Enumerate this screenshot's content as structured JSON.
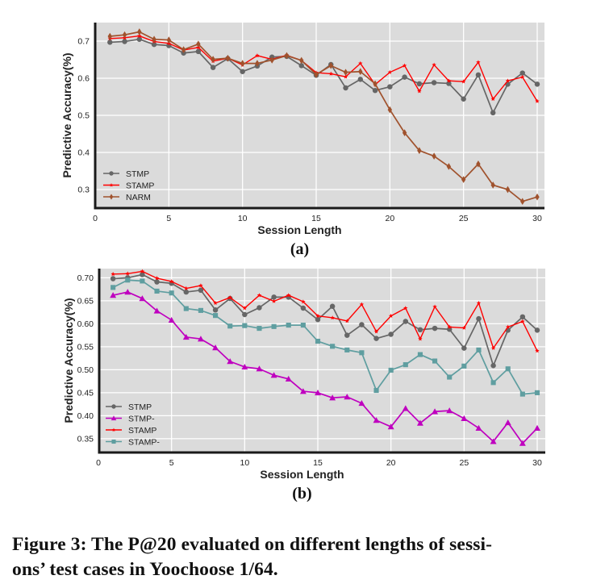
{
  "chart_data": [
    {
      "id": "a",
      "type": "line",
      "panel_label": "(a)",
      "title": "",
      "xlabel": "Session Length",
      "ylabel": "Predictive Accuracy(%)",
      "xlim": [
        0,
        30
      ],
      "ylim": [
        0.25,
        0.75
      ],
      "xticks": [
        0,
        5,
        10,
        15,
        20,
        25,
        30
      ],
      "yticks": [
        0.3,
        0.4,
        0.5,
        0.6,
        0.7
      ],
      "ytick_labels": [
        "0.3",
        "0.4",
        "0.5",
        "0.6",
        "0.7"
      ],
      "grid": true,
      "legend": "bottom-left",
      "x": [
        1,
        2,
        3,
        4,
        5,
        6,
        7,
        8,
        9,
        10,
        11,
        12,
        13,
        14,
        15,
        16,
        17,
        18,
        19,
        20,
        21,
        22,
        23,
        24,
        25,
        26,
        27,
        28,
        29,
        30
      ],
      "series": [
        {
          "name": "STMP",
          "color": "#666666",
          "marker": "circle",
          "values": [
            0.697,
            0.699,
            0.705,
            0.691,
            0.688,
            0.668,
            0.672,
            0.629,
            0.653,
            0.618,
            0.633,
            0.657,
            0.659,
            0.634,
            0.608,
            0.637,
            0.574,
            0.597,
            0.567,
            0.577,
            0.603,
            0.585,
            0.588,
            0.586,
            0.544,
            0.609,
            0.507,
            0.584,
            0.614,
            0.584
          ]
        },
        {
          "name": "STAMP",
          "color": "#ff0000",
          "marker": "star",
          "values": [
            0.707,
            0.709,
            0.714,
            0.699,
            0.694,
            0.676,
            0.683,
            0.646,
            0.654,
            0.636,
            0.661,
            0.651,
            0.662,
            0.648,
            0.615,
            0.612,
            0.604,
            0.64,
            0.583,
            0.616,
            0.634,
            0.565,
            0.636,
            0.593,
            0.591,
            0.643,
            0.544,
            0.593,
            0.603,
            0.538
          ]
        },
        {
          "name": "NARM",
          "color": "#a0522d",
          "marker": "diamond",
          "values": [
            0.713,
            0.717,
            0.725,
            0.705,
            0.703,
            0.677,
            0.692,
            0.651,
            0.654,
            0.64,
            0.64,
            0.649,
            0.661,
            0.648,
            0.61,
            0.634,
            0.616,
            0.618,
            0.585,
            0.515,
            0.453,
            0.405,
            0.39,
            0.362,
            0.327,
            0.369,
            0.312,
            0.3,
            0.268,
            0.28
          ]
        }
      ]
    },
    {
      "id": "b",
      "type": "line",
      "panel_label": "(b)",
      "title": "",
      "xlabel": "Session Length",
      "ylabel": "Predictive Accuracy(%)",
      "xlim": [
        0,
        30
      ],
      "ylim": [
        0.32,
        0.72
      ],
      "xticks": [
        0,
        5,
        10,
        15,
        20,
        25,
        30
      ],
      "yticks": [
        0.35,
        0.4,
        0.45,
        0.5,
        0.55,
        0.6,
        0.65,
        0.7
      ],
      "ytick_labels": [
        "0.35",
        "0.40",
        "0.45",
        "0.50",
        "0.55",
        "0.60",
        "0.65",
        "0.70"
      ],
      "grid": true,
      "legend": "bottom-left",
      "x": [
        1,
        2,
        3,
        4,
        5,
        6,
        7,
        8,
        9,
        10,
        11,
        12,
        13,
        14,
        15,
        16,
        17,
        18,
        19,
        20,
        21,
        22,
        23,
        24,
        25,
        26,
        27,
        28,
        29,
        30
      ],
      "series": [
        {
          "name": "STMP",
          "color": "#666666",
          "marker": "circle",
          "values": [
            0.698,
            0.7,
            0.707,
            0.691,
            0.688,
            0.669,
            0.673,
            0.63,
            0.655,
            0.62,
            0.635,
            0.658,
            0.658,
            0.634,
            0.609,
            0.638,
            0.575,
            0.598,
            0.568,
            0.577,
            0.605,
            0.587,
            0.59,
            0.588,
            0.547,
            0.611,
            0.509,
            0.586,
            0.615,
            0.586
          ]
        },
        {
          "name": "STMP-",
          "color": "#bf00bf",
          "marker": "triangle",
          "values": [
            0.662,
            0.669,
            0.655,
            0.628,
            0.608,
            0.571,
            0.567,
            0.548,
            0.518,
            0.506,
            0.502,
            0.488,
            0.48,
            0.453,
            0.45,
            0.439,
            0.441,
            0.427,
            0.39,
            0.376,
            0.416,
            0.384,
            0.409,
            0.411,
            0.394,
            0.373,
            0.344,
            0.385,
            0.34,
            0.373
          ]
        },
        {
          "name": "STAMP",
          "color": "#ff0000",
          "marker": "star",
          "values": [
            0.708,
            0.709,
            0.714,
            0.699,
            0.692,
            0.677,
            0.683,
            0.645,
            0.657,
            0.634,
            0.662,
            0.649,
            0.662,
            0.648,
            0.617,
            0.613,
            0.606,
            0.642,
            0.583,
            0.617,
            0.634,
            0.567,
            0.637,
            0.593,
            0.591,
            0.645,
            0.547,
            0.593,
            0.605,
            0.541
          ]
        },
        {
          "name": "STAMP-",
          "color": "#5f9ea0",
          "marker": "square",
          "values": [
            0.679,
            0.695,
            0.693,
            0.671,
            0.667,
            0.633,
            0.629,
            0.618,
            0.595,
            0.596,
            0.59,
            0.594,
            0.597,
            0.597,
            0.562,
            0.551,
            0.543,
            0.537,
            0.455,
            0.499,
            0.511,
            0.533,
            0.519,
            0.484,
            0.508,
            0.543,
            0.472,
            0.502,
            0.447,
            0.45
          ]
        }
      ]
    }
  ],
  "caption": "Figure 3: The P@20 evaluated on different lengths of sessions’ test cases in Yoochoose 1/64.",
  "caption_lines": [
    "Figure 3: The P@20 evaluated on different lengths of sessi-",
    "ons’ test cases in Yoochoose 1/64."
  ]
}
